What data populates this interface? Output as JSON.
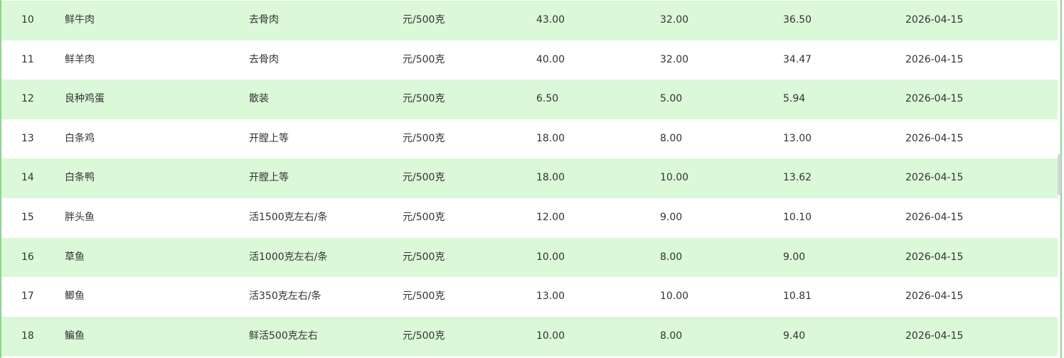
{
  "colors": {
    "stripe": "#dbf8d9",
    "border": "#8fd38f",
    "text": "#333333"
  },
  "rows": [
    {
      "no": "10",
      "name": "鲜牛肉",
      "spec": "去骨肉",
      "unit": "元/500克",
      "high": "43.00",
      "low": "32.00",
      "avg": "36.50",
      "date": "2026-04-15"
    },
    {
      "no": "11",
      "name": "鲜羊肉",
      "spec": "去骨肉",
      "unit": "元/500克",
      "high": "40.00",
      "low": "32.00",
      "avg": "34.47",
      "date": "2026-04-15"
    },
    {
      "no": "12",
      "name": "良种鸡蛋",
      "spec": "散装",
      "unit": "元/500克",
      "high": "6.50",
      "low": "5.00",
      "avg": "5.94",
      "date": "2026-04-15"
    },
    {
      "no": "13",
      "name": "白条鸡",
      "spec": "开膛上等",
      "unit": "元/500克",
      "high": "18.00",
      "low": "8.00",
      "avg": "13.00",
      "date": "2026-04-15"
    },
    {
      "no": "14",
      "name": "白条鸭",
      "spec": "开膛上等",
      "unit": "元/500克",
      "high": "18.00",
      "low": "10.00",
      "avg": "13.62",
      "date": "2026-04-15"
    },
    {
      "no": "15",
      "name": "胖头鱼",
      "spec": "活1500克左右/条",
      "unit": "元/500克",
      "high": "12.00",
      "low": "9.00",
      "avg": "10.10",
      "date": "2026-04-15"
    },
    {
      "no": "16",
      "name": "草鱼",
      "spec": "活1000克左右/条",
      "unit": "元/500克",
      "high": "10.00",
      "low": "8.00",
      "avg": "9.00",
      "date": "2026-04-15"
    },
    {
      "no": "17",
      "name": "鲫鱼",
      "spec": "活350克左右/条",
      "unit": "元/500克",
      "high": "13.00",
      "low": "10.00",
      "avg": "10.81",
      "date": "2026-04-15"
    },
    {
      "no": "18",
      "name": "鳊鱼",
      "spec": "鲜活500克左右",
      "unit": "元/500克",
      "high": "10.00",
      "low": "8.00",
      "avg": "9.40",
      "date": "2026-04-15"
    }
  ]
}
